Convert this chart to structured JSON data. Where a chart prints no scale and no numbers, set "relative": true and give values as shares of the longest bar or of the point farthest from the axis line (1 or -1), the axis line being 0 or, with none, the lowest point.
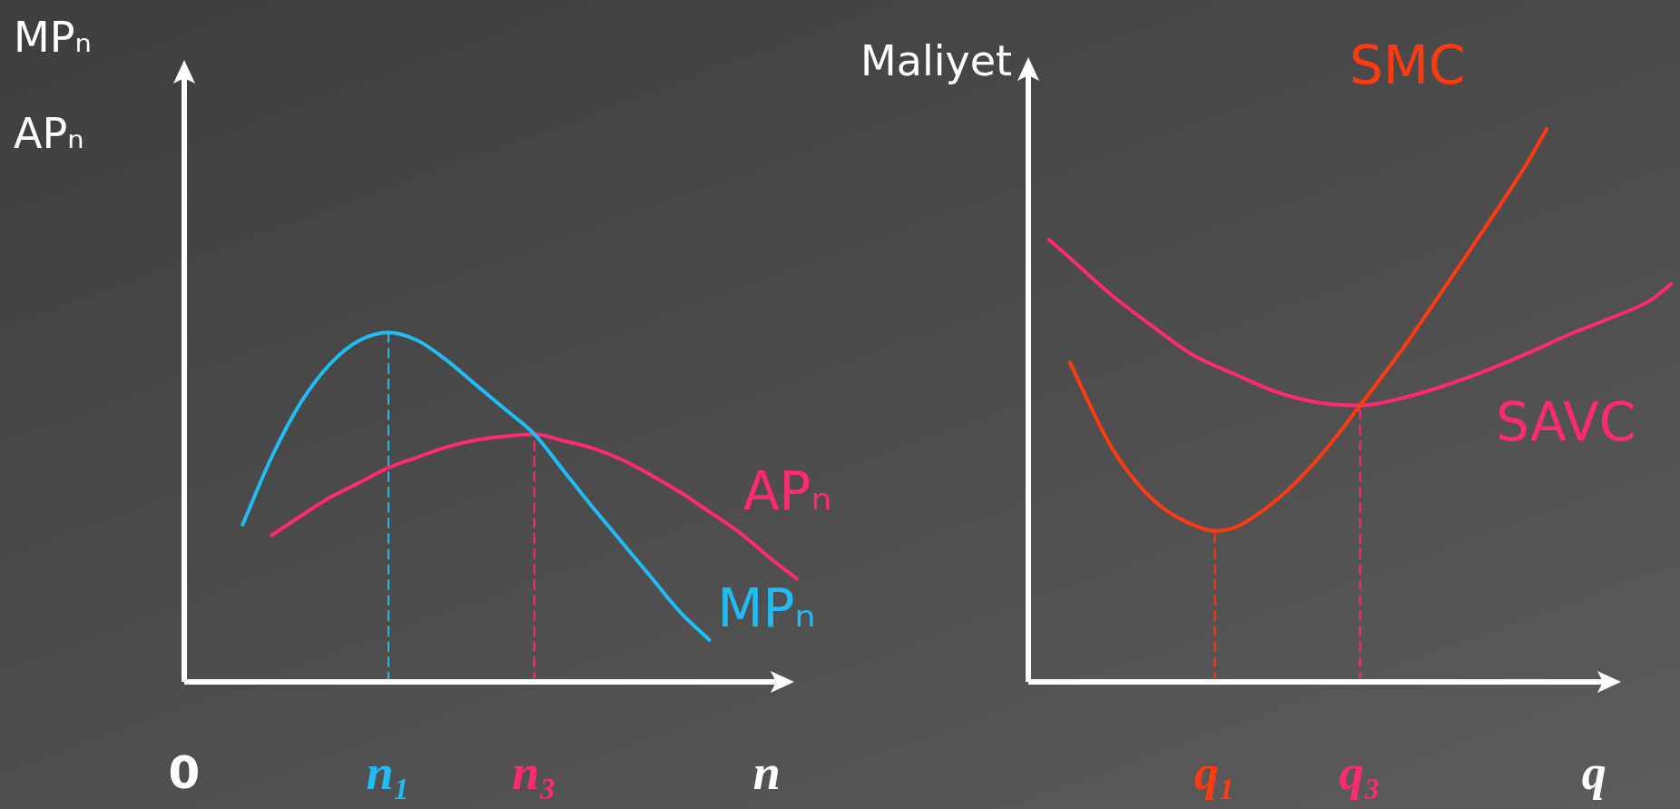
{
  "chart_data": [
    {
      "type": "line",
      "relative": true,
      "ylabel": "MPₙ\nAPₙ",
      "xlabel": "n",
      "categories": [
        "0",
        null,
        null,
        null,
        null,
        null,
        null,
        "n₁",
        null,
        null,
        null,
        null,
        "n₃",
        null,
        null,
        null,
        null,
        null,
        null,
        null,
        null,
        null,
        null
      ],
      "series": [
        {
          "name": "MPₙ",
          "color": "#22bcf5",
          "values": [
            null,
            null,
            0.45,
            0.644,
            0.8,
            0.91,
            0.977,
            1.0,
            0.977,
            0.92,
            0.85,
            0.78,
            0.709,
            0.605,
            0.5,
            0.4,
            0.3,
            0.2,
            0.12,
            null,
            null,
            null,
            null
          ]
        },
        {
          "name": "APₙ",
          "color": "#ff2a70",
          "values": [
            null,
            null,
            null,
            0.42,
            0.475,
            0.528,
            0.57,
            0.613,
            0.643,
            0.672,
            0.692,
            0.703,
            0.709,
            0.69,
            0.669,
            0.636,
            0.592,
            0.543,
            0.487,
            0.43,
            0.36,
            0.295,
            null
          ]
        },
        {
          "color": "#22bcf5",
          "line_style": "dashed",
          "x": [
            "n₁",
            "n₁"
          ],
          "values": [
            0,
            1.0
          ]
        },
        {
          "color": "#ff2a70",
          "line_style": "dashed",
          "x": [
            "n₃",
            "n₃"
          ],
          "values": [
            0,
            0.709
          ]
        }
      ]
    },
    {
      "type": "line",
      "relative": true,
      "ylabel": "Maliyet",
      "xlabel": "q",
      "categories": [
        null,
        null,
        null,
        null,
        null,
        null,
        null,
        null,
        null,
        "q₁",
        null,
        null,
        null,
        null,
        null,
        null,
        "q₃",
        null,
        null,
        null,
        null,
        null,
        null,
        null,
        null,
        null,
        null,
        null,
        null,
        null,
        null,
        null
      ],
      "series": [
        {
          "name": "SMC",
          "color": "#ff3a10",
          "values": [
            null,
            null,
            0.578,
            null,
            0.425,
            null,
            0.33,
            null,
            0.283,
            0.273,
            0.28,
            null,
            0.33,
            null,
            0.405,
            null,
            0.5,
            null,
            0.6,
            null,
            0.709,
            null,
            0.82,
            null,
            0.935,
            1.0,
            null,
            null,
            null,
            null,
            null,
            null
          ]
        },
        {
          "name": "SAVC",
          "color": "#ff2a70",
          "values": [
            null,
            0.8,
            0.767,
            null,
            0.7,
            null,
            0.643,
            null,
            0.59,
            null,
            0.556,
            null,
            0.524,
            null,
            0.505,
            null,
            0.5,
            null,
            0.513,
            null,
            0.535,
            null,
            0.562,
            null,
            0.593,
            null,
            0.627,
            null,
            0.657,
            null,
            0.69,
            0.72
          ]
        },
        {
          "color": "#ff3a10",
          "line_style": "dashed",
          "x": [
            "q₁",
            "q₁"
          ],
          "values": [
            0,
            0.273
          ]
        },
        {
          "color": "#ff2a70",
          "line_style": "dashed",
          "x": [
            "q₃",
            "q₃"
          ],
          "values": [
            0,
            0.5
          ]
        }
      ]
    }
  ]
}
